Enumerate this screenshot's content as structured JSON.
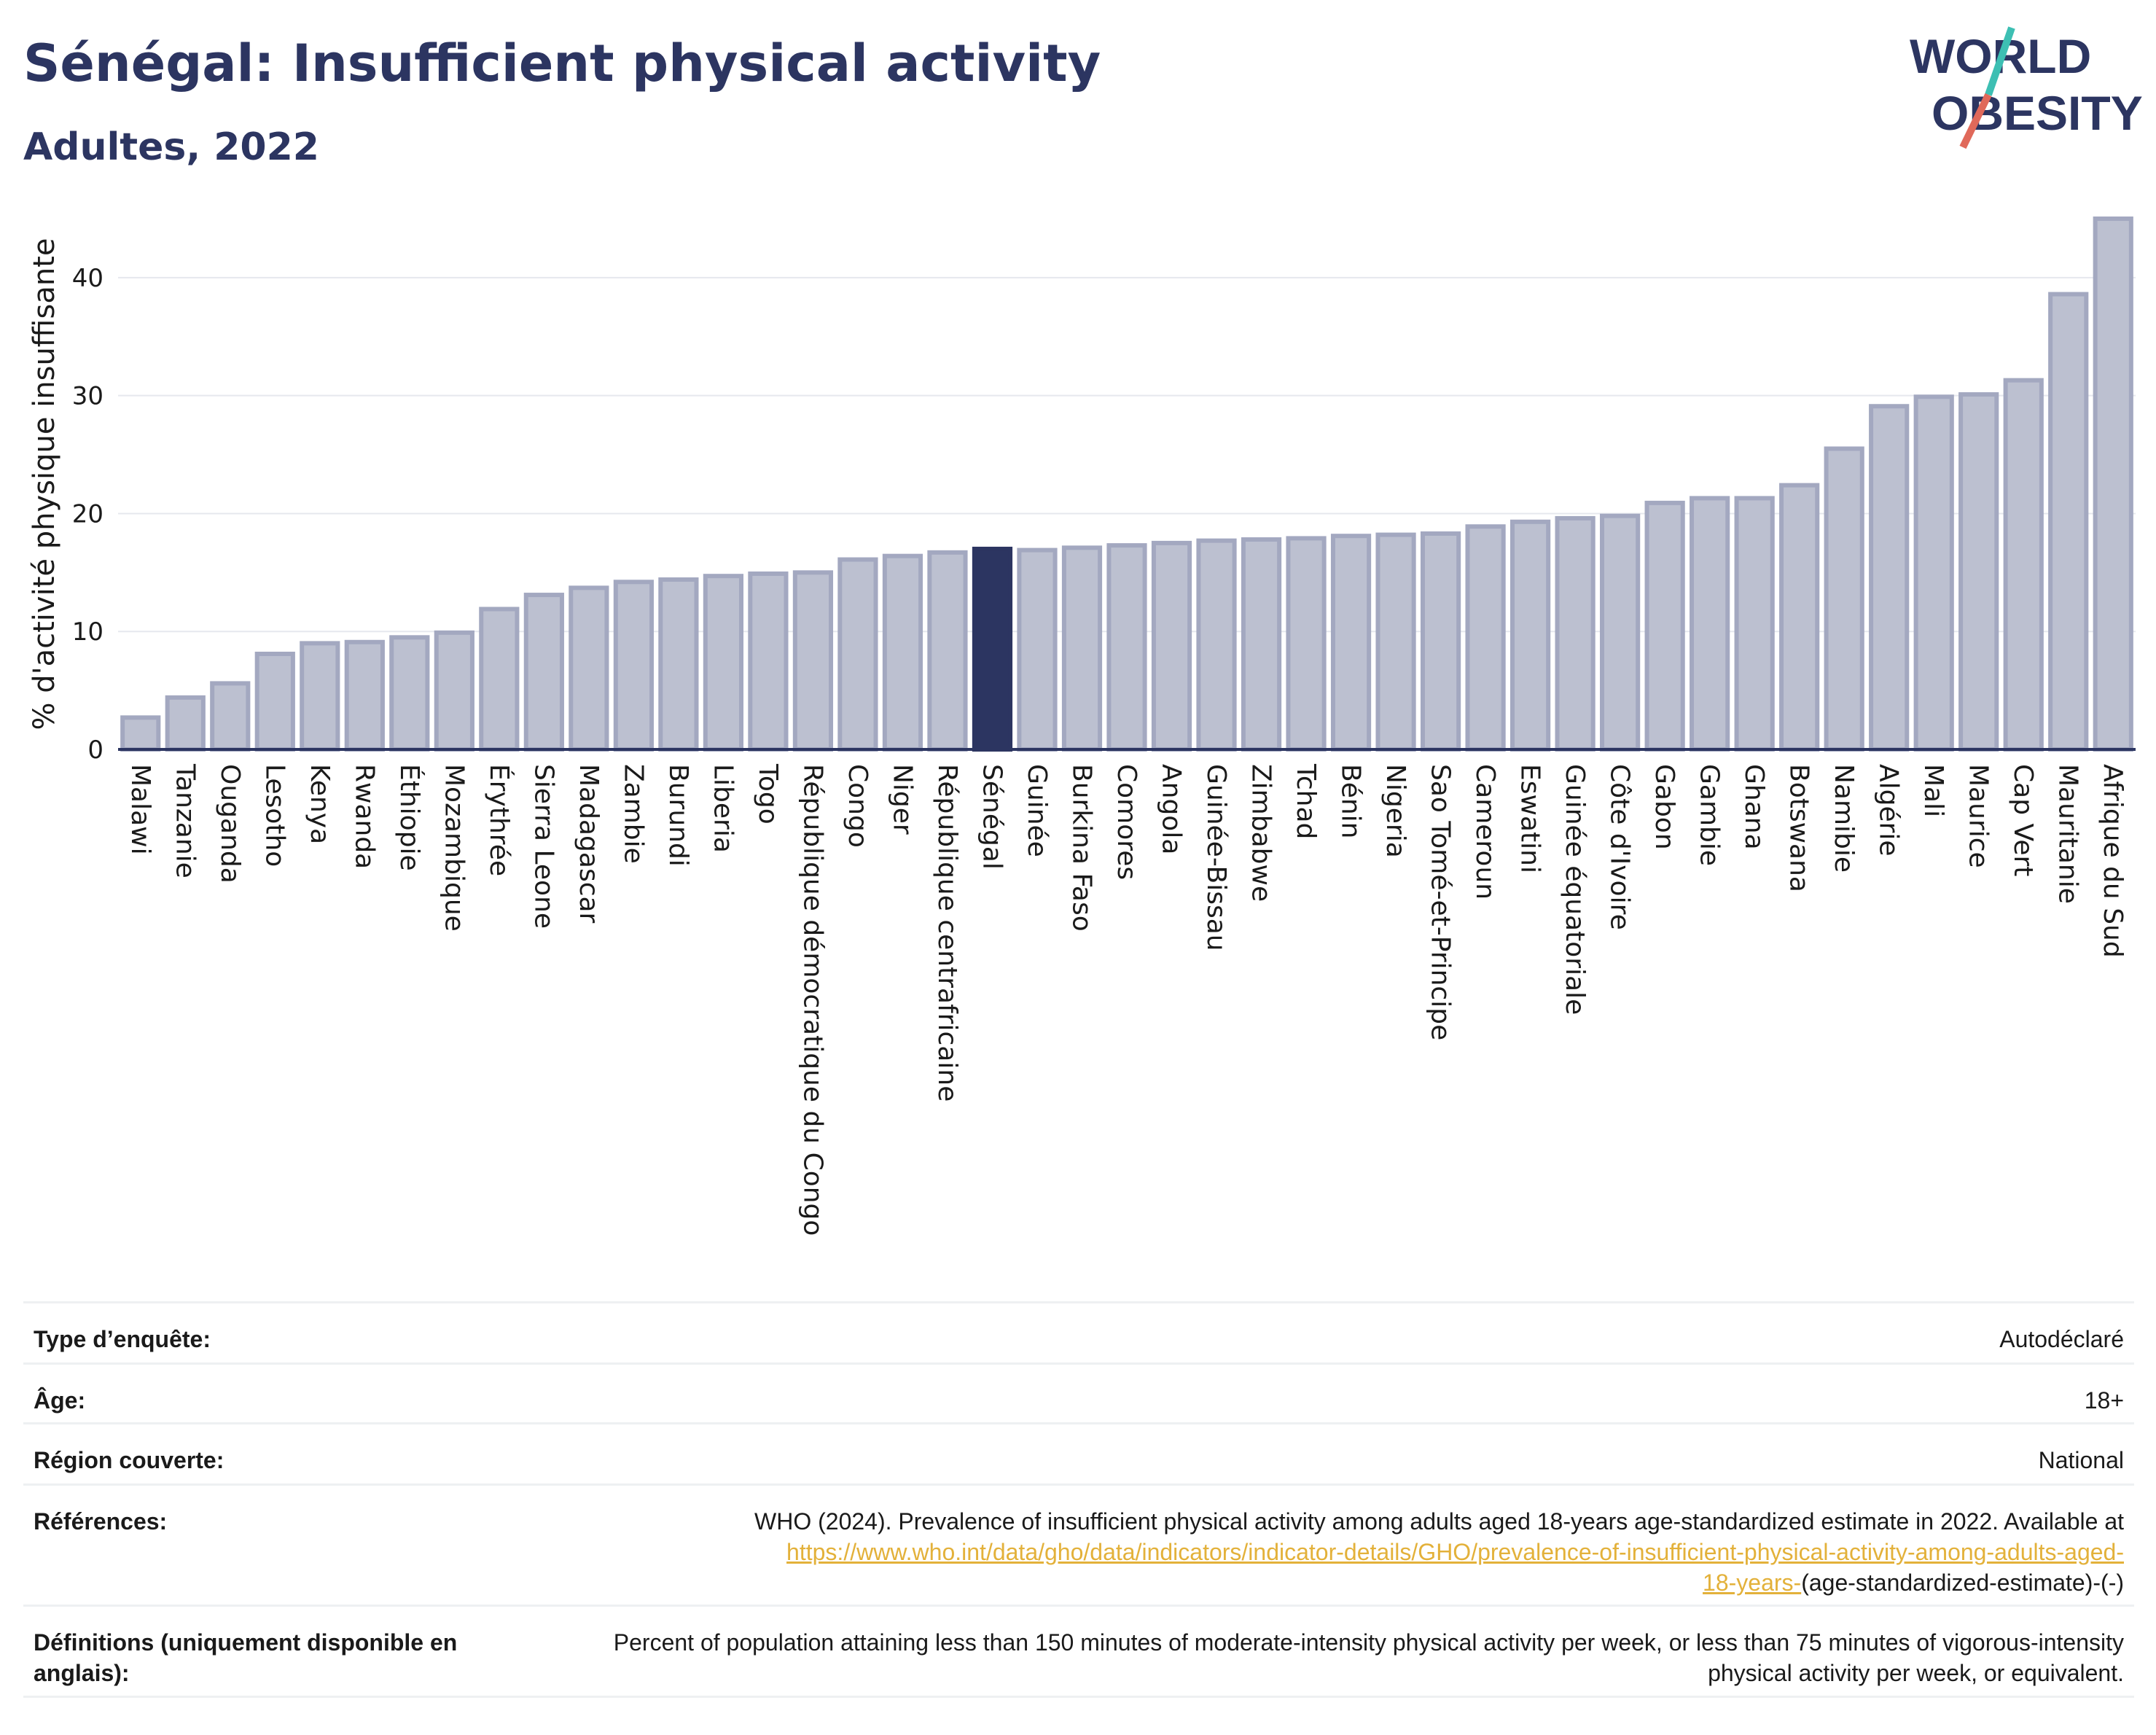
{
  "header": {
    "title": "Sénégal: Insufficient physical activity",
    "subtitle": "Adultes, 2022"
  },
  "logo": {
    "line1": "WORLD",
    "line2": "OBESITY",
    "text_color": "#2c3561",
    "slash_colors": [
      "#3dbfb3",
      "#e0695a"
    ]
  },
  "chart_data": {
    "type": "bar",
    "ylabel": "% d'activité physique insuffisante",
    "xlabel": "",
    "ylim": [
      0,
      45
    ],
    "yticks": [
      0,
      10,
      20,
      30,
      40
    ],
    "grid": true,
    "highlight": "Sénégal",
    "colors": {
      "bar": "#bcc0d0",
      "bar_border": "#a3a8c0",
      "highlight": "#2c3561",
      "axis": "#2c3561",
      "grid": "#e6e8ee"
    },
    "categories": [
      "Malawi",
      "Tanzanie",
      "Ouganda",
      "Lesotho",
      "Kenya",
      "Rwanda",
      "Éthiopie",
      "Mozambique",
      "Érythrée",
      "Sierra Leone",
      "Madagascar",
      "Zambie",
      "Burundi",
      "Liberia",
      "Togo",
      "République démocratique du Congo",
      "Congo",
      "Niger",
      "République centrafricaine",
      "Sénégal",
      "Guinée",
      "Burkina Faso",
      "Comores",
      "Angola",
      "Guinée-Bissau",
      "Zimbabwe",
      "Tchad",
      "Bénin",
      "Nigeria",
      "Sao Tomé-et-Principe",
      "Cameroun",
      "Eswatini",
      "Guinée équatoriale",
      "Côte d'Ivoire",
      "Gabon",
      "Gambie",
      "Ghana",
      "Botswana",
      "Namibie",
      "Algérie",
      "Mali",
      "Maurice",
      "Cap Vert",
      "Mauritanie",
      "Afrique du Sud"
    ],
    "values": [
      2.7,
      4.4,
      5.6,
      8.1,
      9.0,
      9.1,
      9.5,
      9.9,
      11.9,
      13.1,
      13.7,
      14.2,
      14.4,
      14.7,
      14.9,
      15.0,
      16.1,
      16.4,
      16.7,
      17.0,
      16.9,
      17.1,
      17.3,
      17.5,
      17.7,
      17.8,
      17.9,
      18.1,
      18.2,
      18.3,
      18.9,
      19.3,
      19.6,
      19.8,
      20.9,
      21.3,
      21.3,
      22.4,
      25.5,
      29.1,
      29.9,
      30.1,
      31.3,
      38.6,
      45.0
    ]
  },
  "info": {
    "survey_type": {
      "label": "Type d’enquête:",
      "value": "Autodéclaré"
    },
    "age": {
      "label": "Âge:",
      "value": "18+"
    },
    "region": {
      "label": "Région couverte:",
      "value": "National"
    },
    "references": {
      "label": "Références:",
      "text": "WHO (2024). Prevalence of insufficient physical activity among adults aged 18-years age-standardized estimate in 2022. Available at",
      "link_line1": "https://www.who.int/data/gho/data/indicators/indicator-details/GHO/prevalence-of-insufficient-physical-activity-among-adults-aged-",
      "link_line2": "18-years-",
      "suffix": "(age-standardized-estimate)-(-)"
    },
    "definitions": {
      "label": "Définitions (uniquement disponible en anglais):",
      "value": "Percent of population attaining less than 150 minutes of moderate-intensity physical activity per week, or less than 75 minutes of vigorous-intensity physical activity per week, or equivalent."
    }
  }
}
